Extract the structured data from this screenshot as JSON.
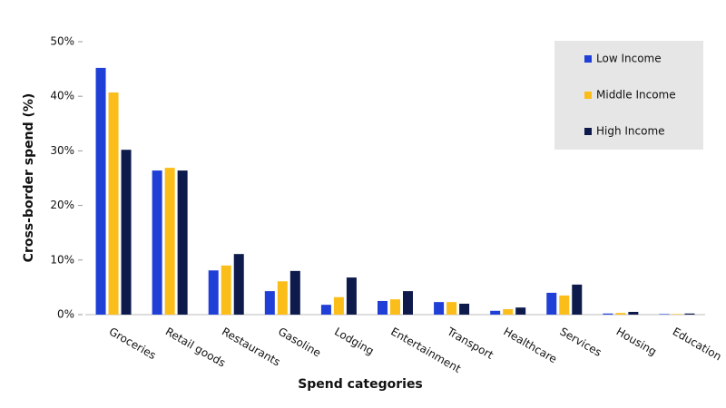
{
  "chart_data": {
    "type": "bar",
    "x_label": "Spend categories",
    "y_label": "Cross-border spend (%)",
    "categories": [
      "Groceries",
      "Retail goods",
      "Restaurants",
      "Gasoline",
      "Lodging",
      "Entertainment",
      "Transport",
      "Healthcare",
      "Services",
      "Housing",
      "Education"
    ],
    "series": [
      {
        "name": "Low Income",
        "color": "#1f3fd6",
        "values": [
          45.2,
          26.4,
          8.1,
          4.3,
          1.8,
          2.5,
          2.3,
          0.7,
          4.0,
          0.2,
          0.1
        ]
      },
      {
        "name": "Middle Income",
        "color": "#fbbd19",
        "values": [
          40.7,
          26.9,
          9.0,
          6.1,
          3.2,
          2.8,
          2.3,
          1.0,
          3.5,
          0.3,
          0.1
        ]
      },
      {
        "name": "High Income",
        "color": "#0e1a4b",
        "values": [
          30.2,
          26.4,
          11.1,
          8.0,
          6.8,
          4.3,
          2.0,
          1.3,
          5.5,
          0.5,
          0.2
        ]
      }
    ],
    "ylim": [
      0,
      50
    ],
    "yticks": [
      {
        "value": 0,
        "label": "0%"
      },
      {
        "value": 10,
        "label": "10%"
      },
      {
        "value": 20,
        "label": "20%"
      },
      {
        "value": 30,
        "label": "30%"
      },
      {
        "value": 40,
        "label": "40%"
      },
      {
        "value": 50,
        "label": "50%"
      }
    ],
    "grid": false,
    "legend": "upper right"
  }
}
